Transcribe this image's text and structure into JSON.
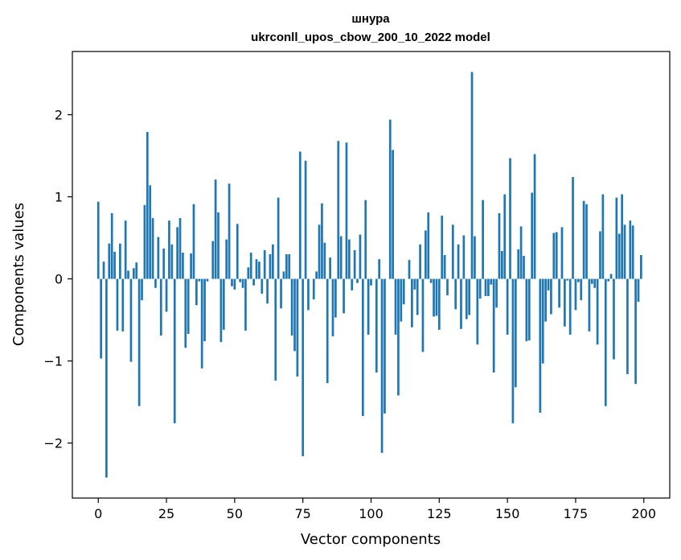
{
  "chart_data": {
    "type": "bar",
    "title": "шнура",
    "subtitle": "ukrconll_upos_cbow_200_10_2022 model",
    "xlabel": "Vector components",
    "ylabel": "Components values",
    "xlim": [
      -9.5,
      209.5
    ],
    "ylim": [
      -2.67,
      2.77
    ],
    "xticks": [
      0,
      25,
      50,
      75,
      100,
      125,
      150,
      175,
      200
    ],
    "yticks": [
      -2,
      -1,
      0,
      1,
      2
    ],
    "bar_color": "#1f77b4",
    "grid": false,
    "legend": "none",
    "values": [
      0.94,
      -0.97,
      0.21,
      -2.42,
      0.43,
      0.8,
      0.33,
      -0.63,
      0.43,
      -0.64,
      0.71,
      0.1,
      -1.01,
      0.13,
      0.2,
      -1.55,
      -0.26,
      0.9,
      1.79,
      1.14,
      0.74,
      -0.11,
      0.51,
      -0.69,
      0.37,
      -0.4,
      0.71,
      0.42,
      -1.76,
      0.63,
      0.74,
      0.32,
      -0.84,
      -0.67,
      0.31,
      0.91,
      -0.32,
      -0.03,
      -1.09,
      -0.76,
      -0.03,
      0.0,
      0.46,
      1.21,
      0.81,
      -0.77,
      -0.62,
      0.48,
      1.16,
      -0.09,
      -0.13,
      0.67,
      -0.04,
      -0.11,
      -0.63,
      0.14,
      0.32,
      -0.08,
      0.24,
      0.21,
      -0.18,
      0.35,
      -0.3,
      0.3,
      0.42,
      -1.24,
      0.99,
      -0.36,
      0.09,
      0.3,
      0.3,
      -0.69,
      -0.88,
      -1.19,
      1.55,
      -2.16,
      1.44,
      -0.38,
      0.0,
      -0.25,
      0.09,
      0.66,
      0.92,
      0.44,
      -1.27,
      0.26,
      -0.7,
      -0.47,
      1.68,
      0.52,
      -0.42,
      1.66,
      0.48,
      -0.14,
      0.35,
      -0.05,
      0.54,
      -1.67,
      0.96,
      -0.68,
      -0.08,
      0.0,
      -1.14,
      0.24,
      -2.12,
      -1.64,
      0.0,
      1.94,
      1.57,
      -0.68,
      -1.42,
      -0.52,
      -0.31,
      0.0,
      0.23,
      -0.59,
      -0.13,
      -0.44,
      0.42,
      -0.89,
      0.59,
      0.81,
      -0.05,
      -0.46,
      -0.45,
      -0.62,
      0.77,
      0.29,
      -0.2,
      0.0,
      0.66,
      -0.37,
      0.42,
      -0.61,
      0.53,
      -0.49,
      -0.44,
      2.52,
      0.52,
      -0.8,
      -0.24,
      0.96,
      -0.21,
      -0.21,
      -0.07,
      -1.14,
      -0.35,
      0.8,
      0.34,
      1.03,
      -0.68,
      1.47,
      -1.76,
      -1.32,
      0.36,
      0.64,
      0.28,
      -0.76,
      -0.75,
      1.05,
      1.52,
      0.0,
      -1.63,
      -1.03,
      -0.52,
      -0.14,
      -0.43,
      0.56,
      0.57,
      -0.35,
      0.63,
      -0.58,
      -0.02,
      -0.68,
      1.24,
      -0.38,
      -0.04,
      -0.26,
      0.95,
      0.91,
      -0.64,
      -0.06,
      -0.11,
      -0.8,
      0.58,
      1.03,
      -1.55,
      -0.03,
      0.06,
      -0.98,
      0.99,
      0.55,
      1.03,
      0.66,
      -1.16,
      0.71,
      0.65,
      -1.28,
      -0.28,
      0.29
    ]
  }
}
